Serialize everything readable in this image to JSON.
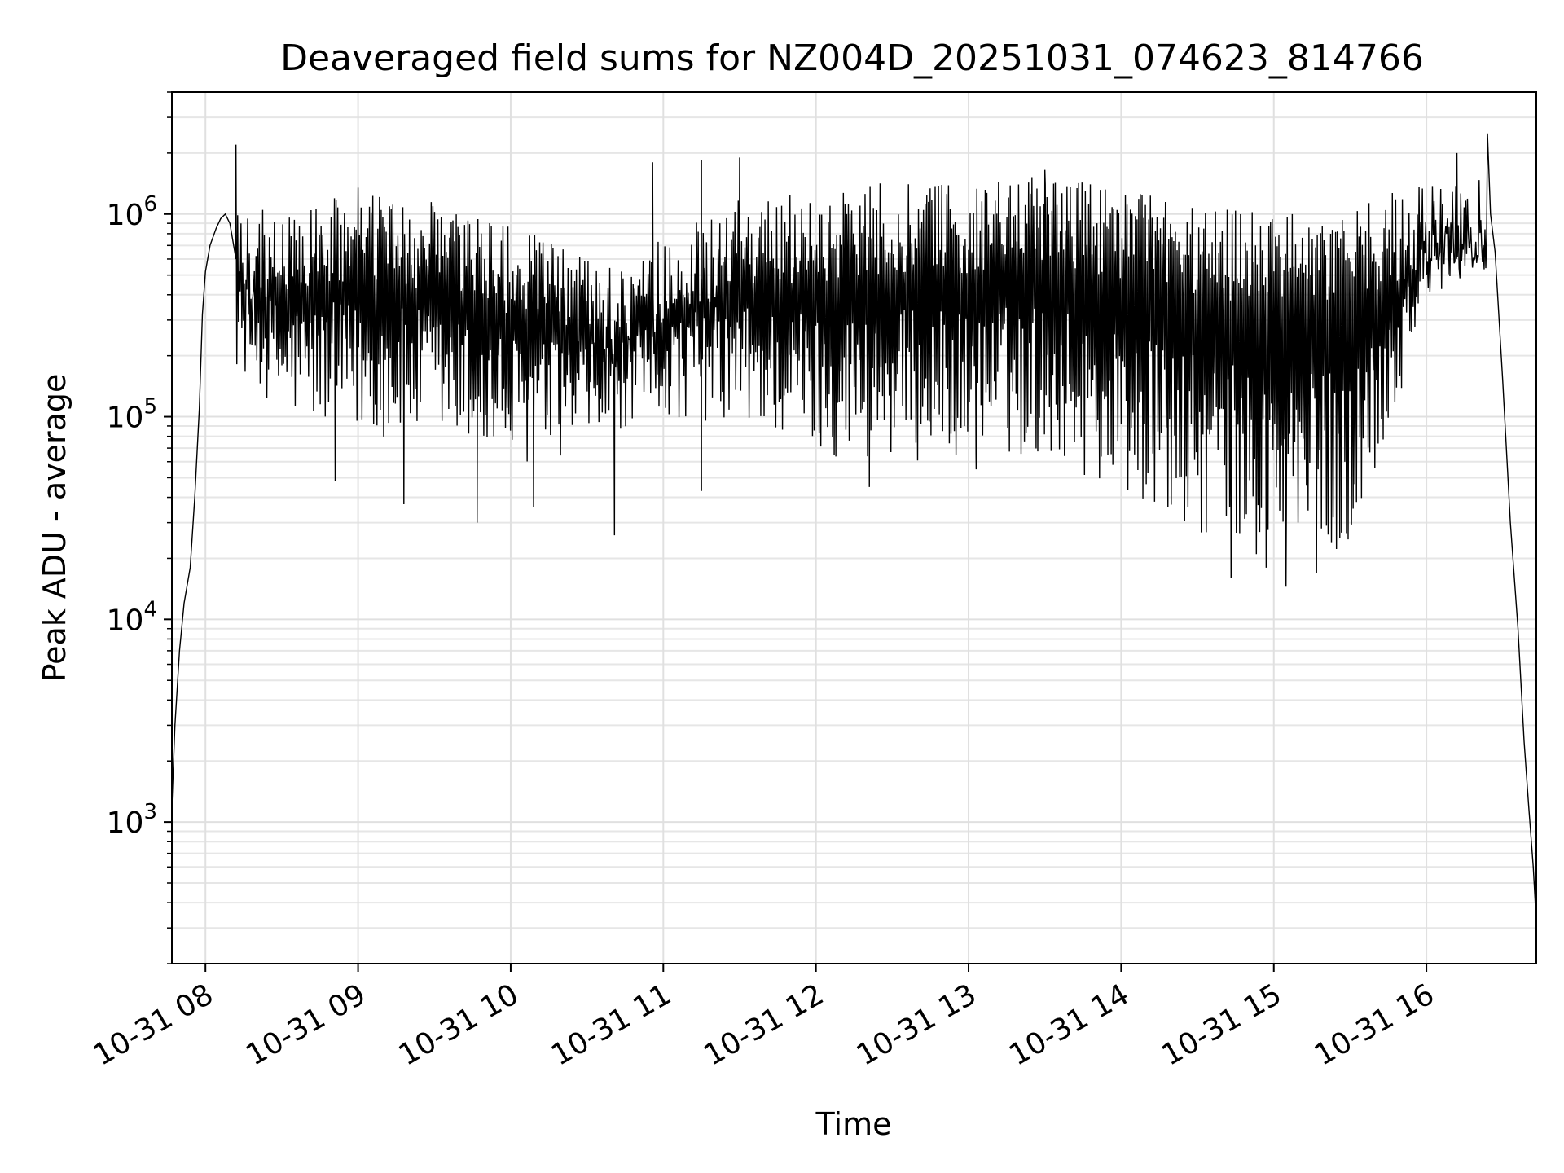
{
  "chart_data": {
    "type": "line",
    "title": "Deaveraged field sums for NZ004D_20251031_074623_814766",
    "xlabel": "Time",
    "ylabel": "Peak ADU - average",
    "yscale": "log",
    "xlim_hours": [
      7.78,
      16.72
    ],
    "ylim": [
      200,
      4000000
    ],
    "grid": "on",
    "x_ticks": [
      {
        "label": "10-31 08",
        "hour": 8
      },
      {
        "label": "10-31 09",
        "hour": 9
      },
      {
        "label": "10-31 10",
        "hour": 10
      },
      {
        "label": "10-31 11",
        "hour": 11
      },
      {
        "label": "10-31 12",
        "hour": 12
      },
      {
        "label": "10-31 13",
        "hour": 13
      },
      {
        "label": "10-31 14",
        "hour": 14
      },
      {
        "label": "10-31 15",
        "hour": 15
      },
      {
        "label": "10-31 16",
        "hour": 16
      }
    ],
    "y_ticks": [
      {
        "base": "10",
        "exp": "3",
        "value": 1000
      },
      {
        "base": "10",
        "exp": "4",
        "value": 10000
      },
      {
        "base": "10",
        "exp": "5",
        "value": 100000
      },
      {
        "base": "10",
        "exp": "6",
        "value": 1000000
      }
    ],
    "series": [
      {
        "name": "Peak ADU - average",
        "color": "#000000",
        "ramp_up": [
          [
            7.78,
            1200
          ],
          [
            7.8,
            3000
          ],
          [
            7.83,
            7000
          ],
          [
            7.86,
            12000
          ],
          [
            7.9,
            18000
          ],
          [
            7.93,
            40000
          ],
          [
            7.96,
            110000
          ],
          [
            7.98,
            320000
          ],
          [
            8.0,
            520000
          ],
          [
            8.03,
            700000
          ],
          [
            8.07,
            850000
          ],
          [
            8.1,
            950000
          ],
          [
            8.13,
            1000000
          ],
          [
            8.16,
            900000
          ],
          [
            8.2,
            600000
          ]
        ],
        "envelope": [
          {
            "hour": 8.2,
            "top": 1000000,
            "bottom": 180000
          },
          {
            "hour": 8.5,
            "top": 1100000,
            "bottom": 100000
          },
          {
            "hour": 9.0,
            "top": 1250000,
            "bottom": 80000
          },
          {
            "hour": 9.5,
            "top": 1150000,
            "bottom": 75000
          },
          {
            "hour": 10.0,
            "top": 900000,
            "bottom": 55000
          },
          {
            "hour": 10.5,
            "top": 600000,
            "bottom": 70000
          },
          {
            "hour": 10.8,
            "top": 550000,
            "bottom": 90000
          },
          {
            "hour": 11.0,
            "top": 800000,
            "bottom": 100000
          },
          {
            "hour": 11.5,
            "top": 1200000,
            "bottom": 90000
          },
          {
            "hour": 12.0,
            "top": 1300000,
            "bottom": 65000
          },
          {
            "hour": 12.5,
            "top": 1450000,
            "bottom": 60000
          },
          {
            "hour": 13.0,
            "top": 1400000,
            "bottom": 60000
          },
          {
            "hour": 13.5,
            "top": 1550000,
            "bottom": 65000
          },
          {
            "hour": 14.0,
            "top": 1350000,
            "bottom": 40000
          },
          {
            "hour": 14.5,
            "top": 1100000,
            "bottom": 25000
          },
          {
            "hour": 15.0,
            "top": 1000000,
            "bottom": 18000
          },
          {
            "hour": 15.5,
            "top": 1050000,
            "bottom": 20000
          },
          {
            "hour": 16.0,
            "top": 1500000,
            "bottom": 350000
          },
          {
            "hour": 16.4,
            "top": 1500000,
            "bottom": 600000
          }
        ],
        "spikes": [
          [
            8.2,
            2200000
          ],
          [
            9.0,
            1350000
          ],
          [
            10.93,
            1800000
          ],
          [
            11.25,
            1850000
          ],
          [
            11.5,
            1900000
          ],
          [
            13.5,
            1650000
          ],
          [
            16.2,
            2000000
          ],
          [
            16.4,
            2500000
          ]
        ],
        "dips": [
          [
            8.85,
            48000
          ],
          [
            9.3,
            37000
          ],
          [
            9.78,
            30000
          ],
          [
            10.15,
            36000
          ],
          [
            10.68,
            26000
          ],
          [
            11.25,
            43000
          ],
          [
            12.35,
            45000
          ],
          [
            13.05,
            55000
          ],
          [
            14.72,
            16000
          ],
          [
            14.95,
            18000
          ],
          [
            15.08,
            14500
          ],
          [
            15.28,
            17000
          ]
        ],
        "ramp_down": [
          [
            16.42,
            1000000
          ],
          [
            16.45,
            650000
          ],
          [
            16.5,
            150000
          ],
          [
            16.55,
            30000
          ],
          [
            16.6,
            9000
          ],
          [
            16.64,
            2500
          ],
          [
            16.67,
            1200
          ],
          [
            16.7,
            600
          ],
          [
            16.72,
            320
          ]
        ]
      }
    ]
  }
}
